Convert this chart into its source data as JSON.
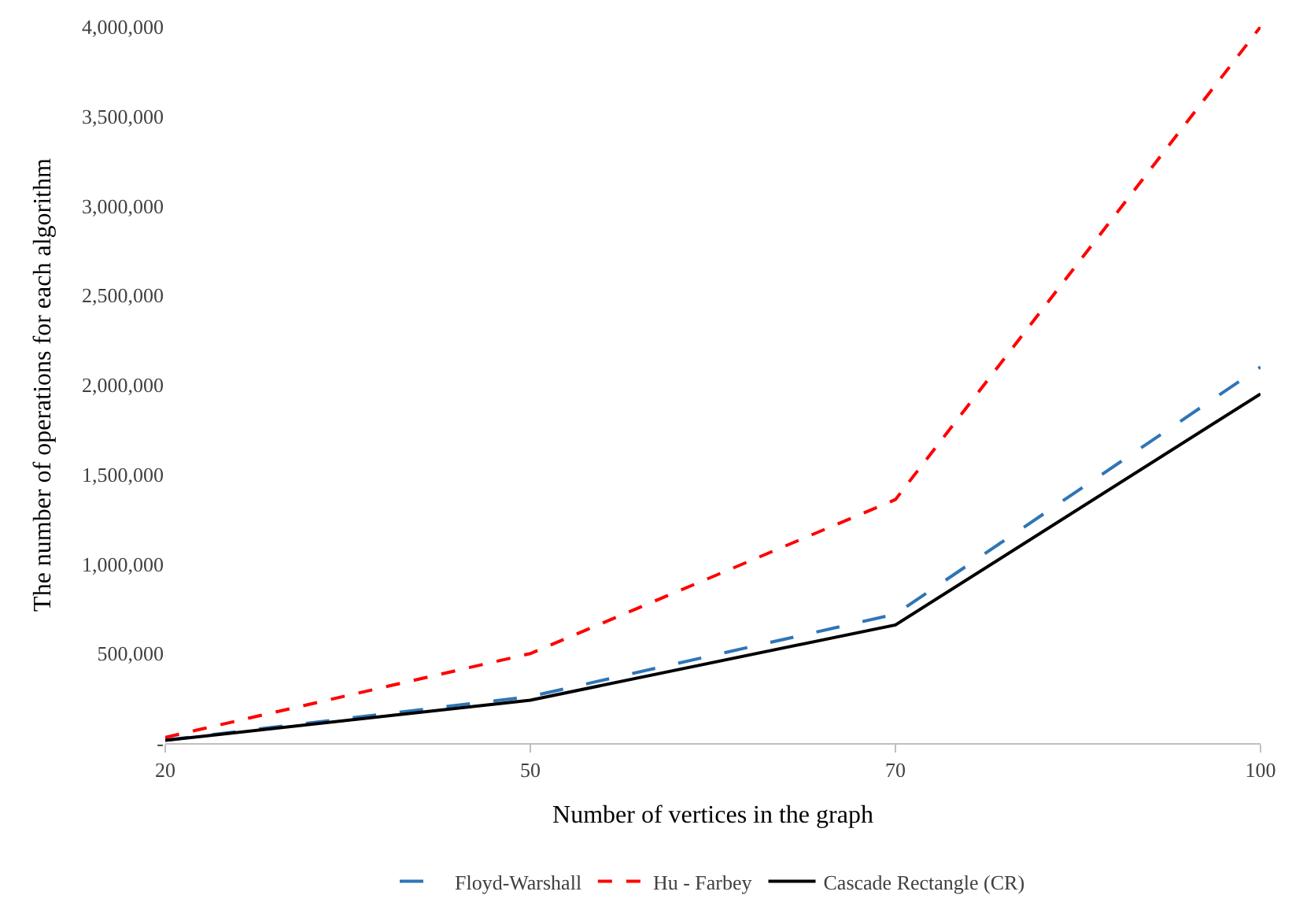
{
  "chart_data": {
    "type": "line",
    "xlabel": "Number of vertices in the graph",
    "ylabel": "The number of operations for each algorithm",
    "categories": [
      "20",
      "50",
      "70",
      "100"
    ],
    "series": [
      {
        "name": "Floyd-Warshall",
        "color": "#2e75b6",
        "line_style": "longdash",
        "values": [
          16000,
          260000,
          720000,
          2100000
        ]
      },
      {
        "name": "Hu - Farbey",
        "color": "#ff0000",
        "line_style": "dashed",
        "values": [
          32000,
          500000,
          1360000,
          4000000
        ]
      },
      {
        "name": "Cascade Rectangle (CR)",
        "color": "#000000",
        "line_style": "solid",
        "values": [
          15000,
          240000,
          660000,
          1950000
        ]
      }
    ],
    "ylim": [
      0,
      4000000
    ],
    "yticks": [
      {
        "value": 0,
        "label": "-"
      },
      {
        "value": 500000,
        "label": "500,000"
      },
      {
        "value": 1000000,
        "label": "1,000,000"
      },
      {
        "value": 1500000,
        "label": "1,500,000"
      },
      {
        "value": 2000000,
        "label": "2,000,000"
      },
      {
        "value": 2500000,
        "label": "2,500,000"
      },
      {
        "value": 3000000,
        "label": "3,000,000"
      },
      {
        "value": 3500000,
        "label": "3,500,000"
      },
      {
        "value": 4000000,
        "label": "4,000,000"
      }
    ],
    "legend": "bottom",
    "marker": "none"
  }
}
